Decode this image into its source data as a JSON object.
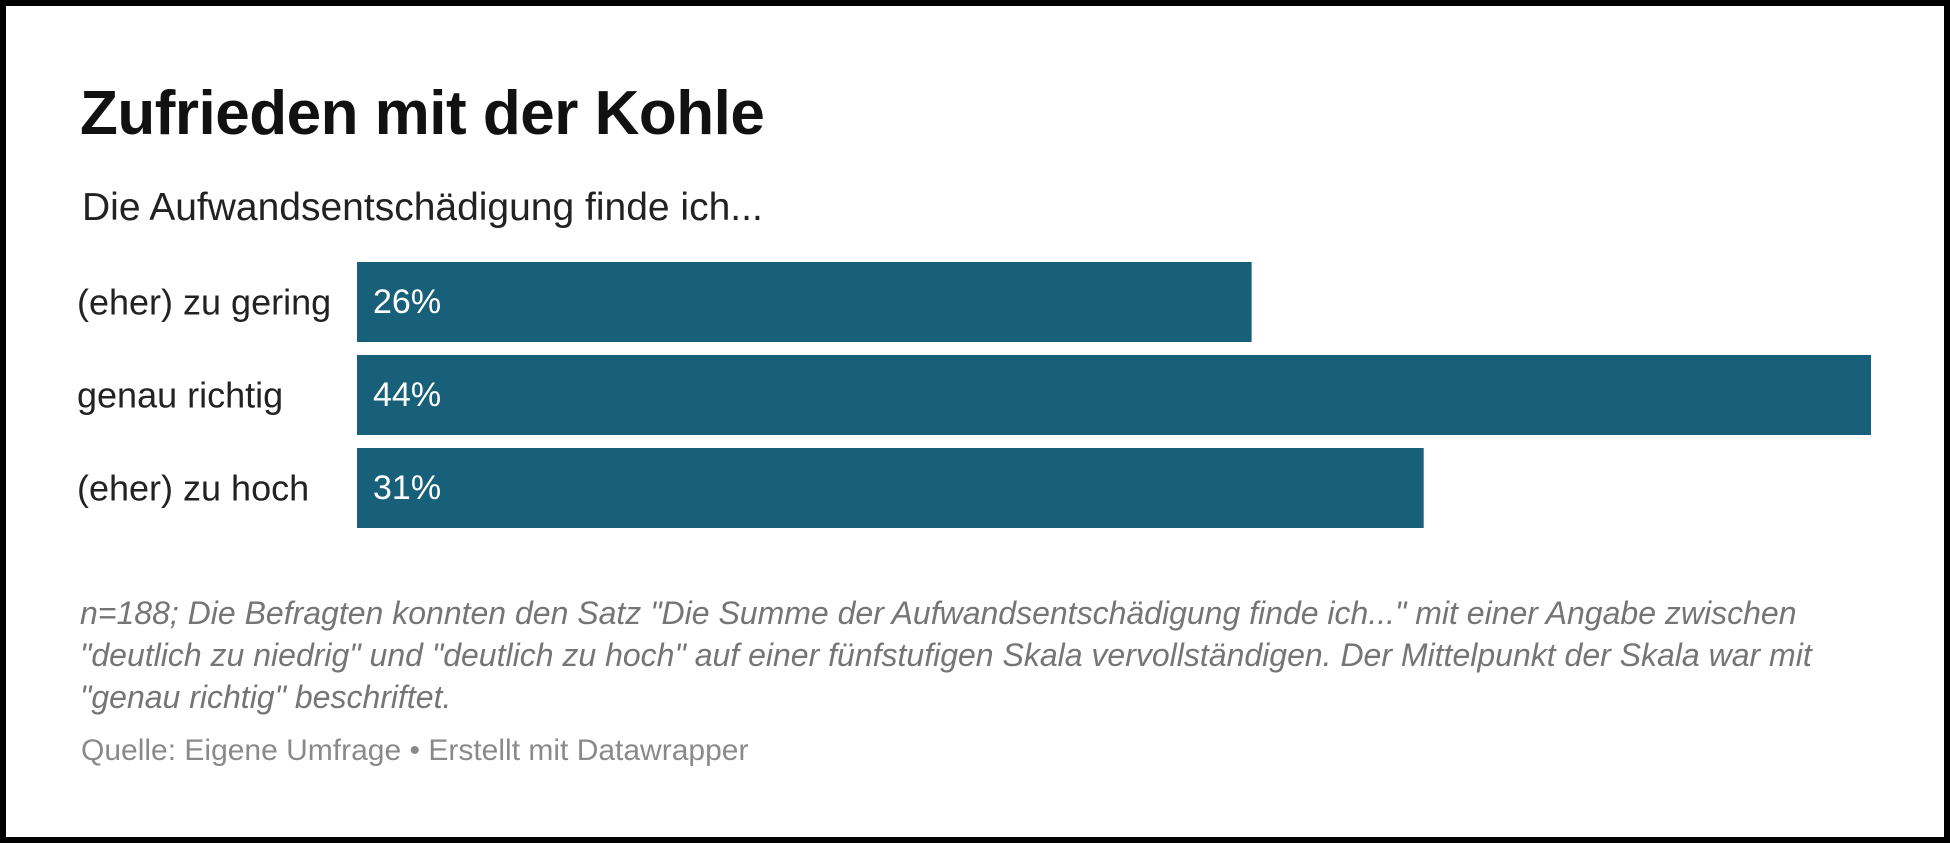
{
  "chart_data": {
    "type": "bar",
    "orientation": "horizontal",
    "title": "Zufrieden mit der Kohle",
    "subtitle": "Die Aufwandsentschädigung finde ich...",
    "categories": [
      "(eher) zu gering",
      "genau richtig",
      "(eher) zu hoch"
    ],
    "values": [
      26,
      44,
      31
    ],
    "value_labels": [
      "26%",
      "44%",
      "31%"
    ],
    "xlim": [
      0,
      44
    ],
    "bar_color": "#186079",
    "grid": false,
    "legend": "none"
  },
  "notes": "n=188; Die Befragten konnten den Satz \"Die Summe der Aufwandsentschädigung finde ich...\" mit einer Angabe zwischen \"deutlich zu niedrig\" und \"deutlich zu hoch\" auf einer fünfstufigen Skala vervollständigen. Der Mittelpunkt der Skala war mit \"genau richtig\" beschriftet.",
  "source": "Quelle: Eigene Umfrage • Erstellt mit Datawrapper"
}
